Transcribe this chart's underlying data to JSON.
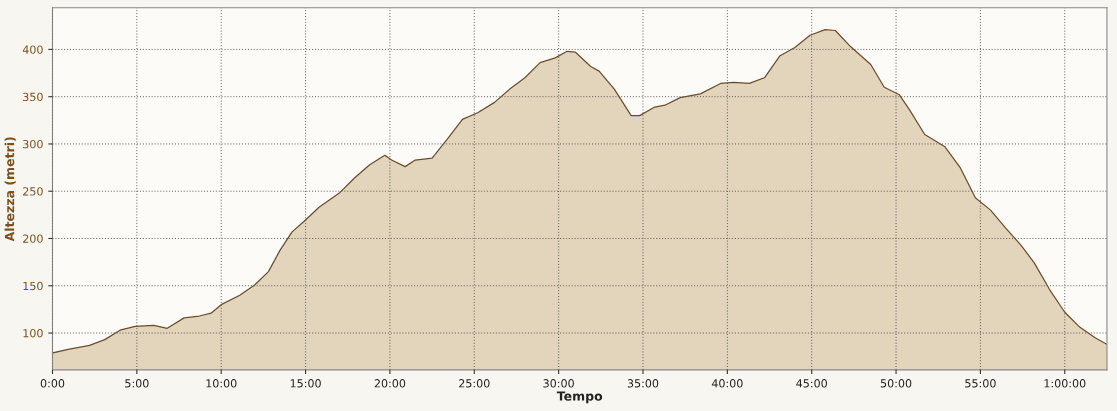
{
  "chart_data": {
    "type": "area",
    "xlabel": "Tempo",
    "ylabel": "Altezza (metri)",
    "color": "#e3d4bc",
    "x": [
      0,
      1.0,
      2.2,
      3.1,
      4.0,
      4.9,
      6.0,
      6.8,
      7.8,
      8.7,
      9.4,
      10.0,
      11.1,
      12.0,
      12.8,
      13.5,
      14.2,
      14.9,
      15.8,
      17.0,
      17.9,
      18.8,
      19.7,
      20.1,
      20.9,
      21.5,
      22.5,
      23.4,
      24.3,
      25.2,
      26.2,
      27.1,
      28.0,
      28.9,
      29.8,
      30.5,
      31.0,
      31.9,
      32.4,
      33.3,
      34.3,
      34.8,
      35.7,
      36.3,
      37.2,
      38.4,
      39.6,
      40.4,
      41.3,
      42.2,
      43.1,
      44.0,
      44.9,
      45.8,
      46.4,
      47.3,
      48.5,
      49.3,
      50.2,
      50.8,
      51.7,
      52.9,
      53.8,
      54.7,
      55.6,
      56.5,
      57.4,
      58.2,
      59.1,
      60.0,
      60.9,
      61.8,
      62.5
    ],
    "values": [
      79,
      83,
      87,
      93,
      103,
      107,
      108,
      105,
      116,
      118,
      121,
      130,
      140,
      151,
      165,
      188,
      207,
      218,
      233,
      248,
      264,
      278,
      288,
      283,
      276,
      283,
      285,
      305,
      326,
      333,
      344,
      358,
      370,
      386,
      391,
      398,
      397,
      382,
      377,
      358,
      330,
      330,
      339,
      341,
      349,
      353,
      364,
      365,
      364,
      370,
      393,
      402,
      415,
      421,
      420,
      403,
      384,
      360,
      352,
      336,
      310,
      297,
      275,
      243,
      230,
      211,
      193,
      174,
      146,
      122,
      106,
      95,
      88
    ],
    "xlim": [
      0,
      62.5
    ],
    "ylim": [
      61,
      444
    ],
    "xticks": [
      {
        "value": 0,
        "label": "0:00"
      },
      {
        "value": 5,
        "label": "5:00"
      },
      {
        "value": 10,
        "label": "10:00"
      },
      {
        "value": 15,
        "label": "15:00"
      },
      {
        "value": 20,
        "label": "20:00"
      },
      {
        "value": 25,
        "label": "25:00"
      },
      {
        "value": 30,
        "label": "30:00"
      },
      {
        "value": 35,
        "label": "35:00"
      },
      {
        "value": 40,
        "label": "40:00"
      },
      {
        "value": 45,
        "label": "45:00"
      },
      {
        "value": 50,
        "label": "50:00"
      },
      {
        "value": 55,
        "label": "55:00"
      },
      {
        "value": 60,
        "label": "1:00:00"
      }
    ],
    "yticks": [
      100,
      150,
      200,
      250,
      300,
      350,
      400
    ],
    "grid": true
  }
}
